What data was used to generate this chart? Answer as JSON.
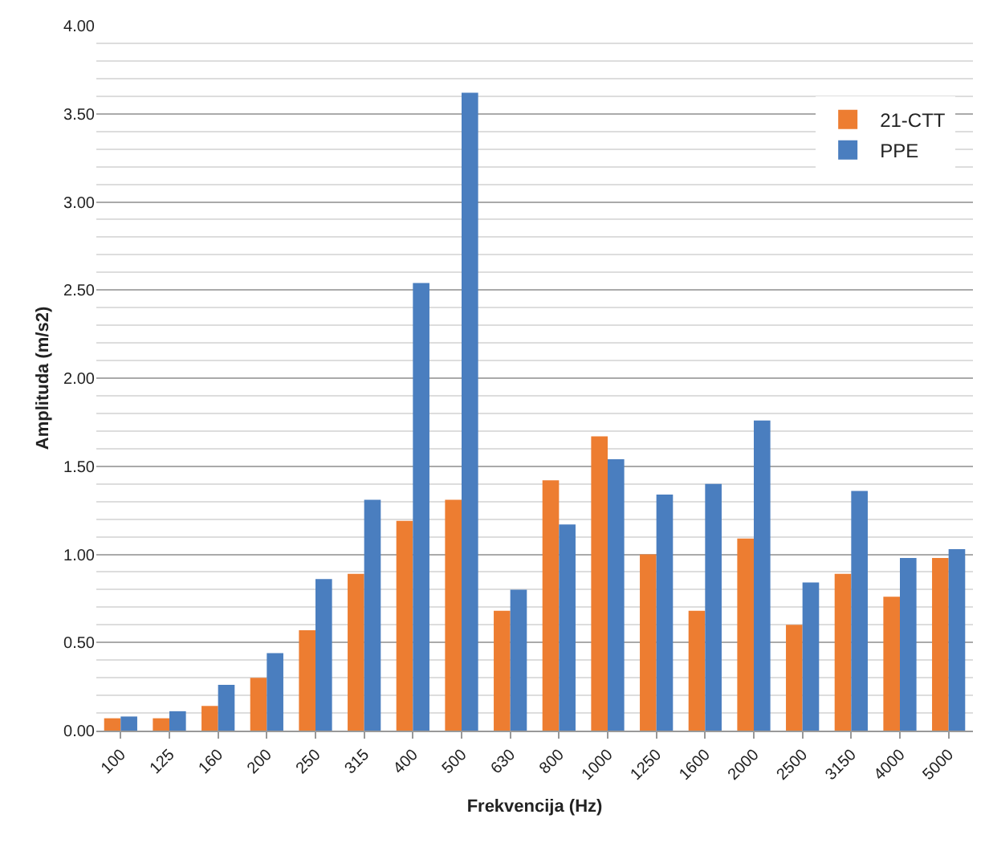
{
  "chart_data": {
    "type": "bar",
    "xlabel": "Frekvencija (Hz)",
    "ylabel": "Amplituda (m/s2)",
    "categories": [
      "100",
      "125",
      "160",
      "200",
      "250",
      "315",
      "400",
      "500",
      "630",
      "800",
      "1000",
      "1250",
      "1600",
      "2000",
      "2500",
      "3150",
      "4000",
      "5000"
    ],
    "series": [
      {
        "name": "21-CTT",
        "color": "#ed7d31",
        "values": [
          0.07,
          0.07,
          0.14,
          0.3,
          0.57,
          0.89,
          1.19,
          1.31,
          0.68,
          1.42,
          1.67,
          1.0,
          0.68,
          1.09,
          0.6,
          0.89,
          0.76,
          0.98
        ]
      },
      {
        "name": "PPE",
        "color": "#4a7ebf",
        "values": [
          0.08,
          0.11,
          0.26,
          0.44,
          0.86,
          1.31,
          2.54,
          3.62,
          0.8,
          1.17,
          1.54,
          1.34,
          1.4,
          1.76,
          0.84,
          1.36,
          0.98,
          1.03
        ]
      }
    ],
    "ylim": [
      0,
      4
    ],
    "yticks": [
      {
        "value": 0,
        "label": "0.00"
      },
      {
        "value": 0.5,
        "label": "0.50"
      },
      {
        "value": 1,
        "label": "1.00"
      },
      {
        "value": 1.5,
        "label": "1.50"
      },
      {
        "value": 2,
        "label": "2.00"
      },
      {
        "value": 2.5,
        "label": "2.50"
      },
      {
        "value": 3,
        "label": "3.00"
      },
      {
        "value": 3.5,
        "label": "3.50"
      },
      {
        "value": 4,
        "label": "4.00"
      }
    ],
    "grid": true,
    "legend": "top right"
  }
}
